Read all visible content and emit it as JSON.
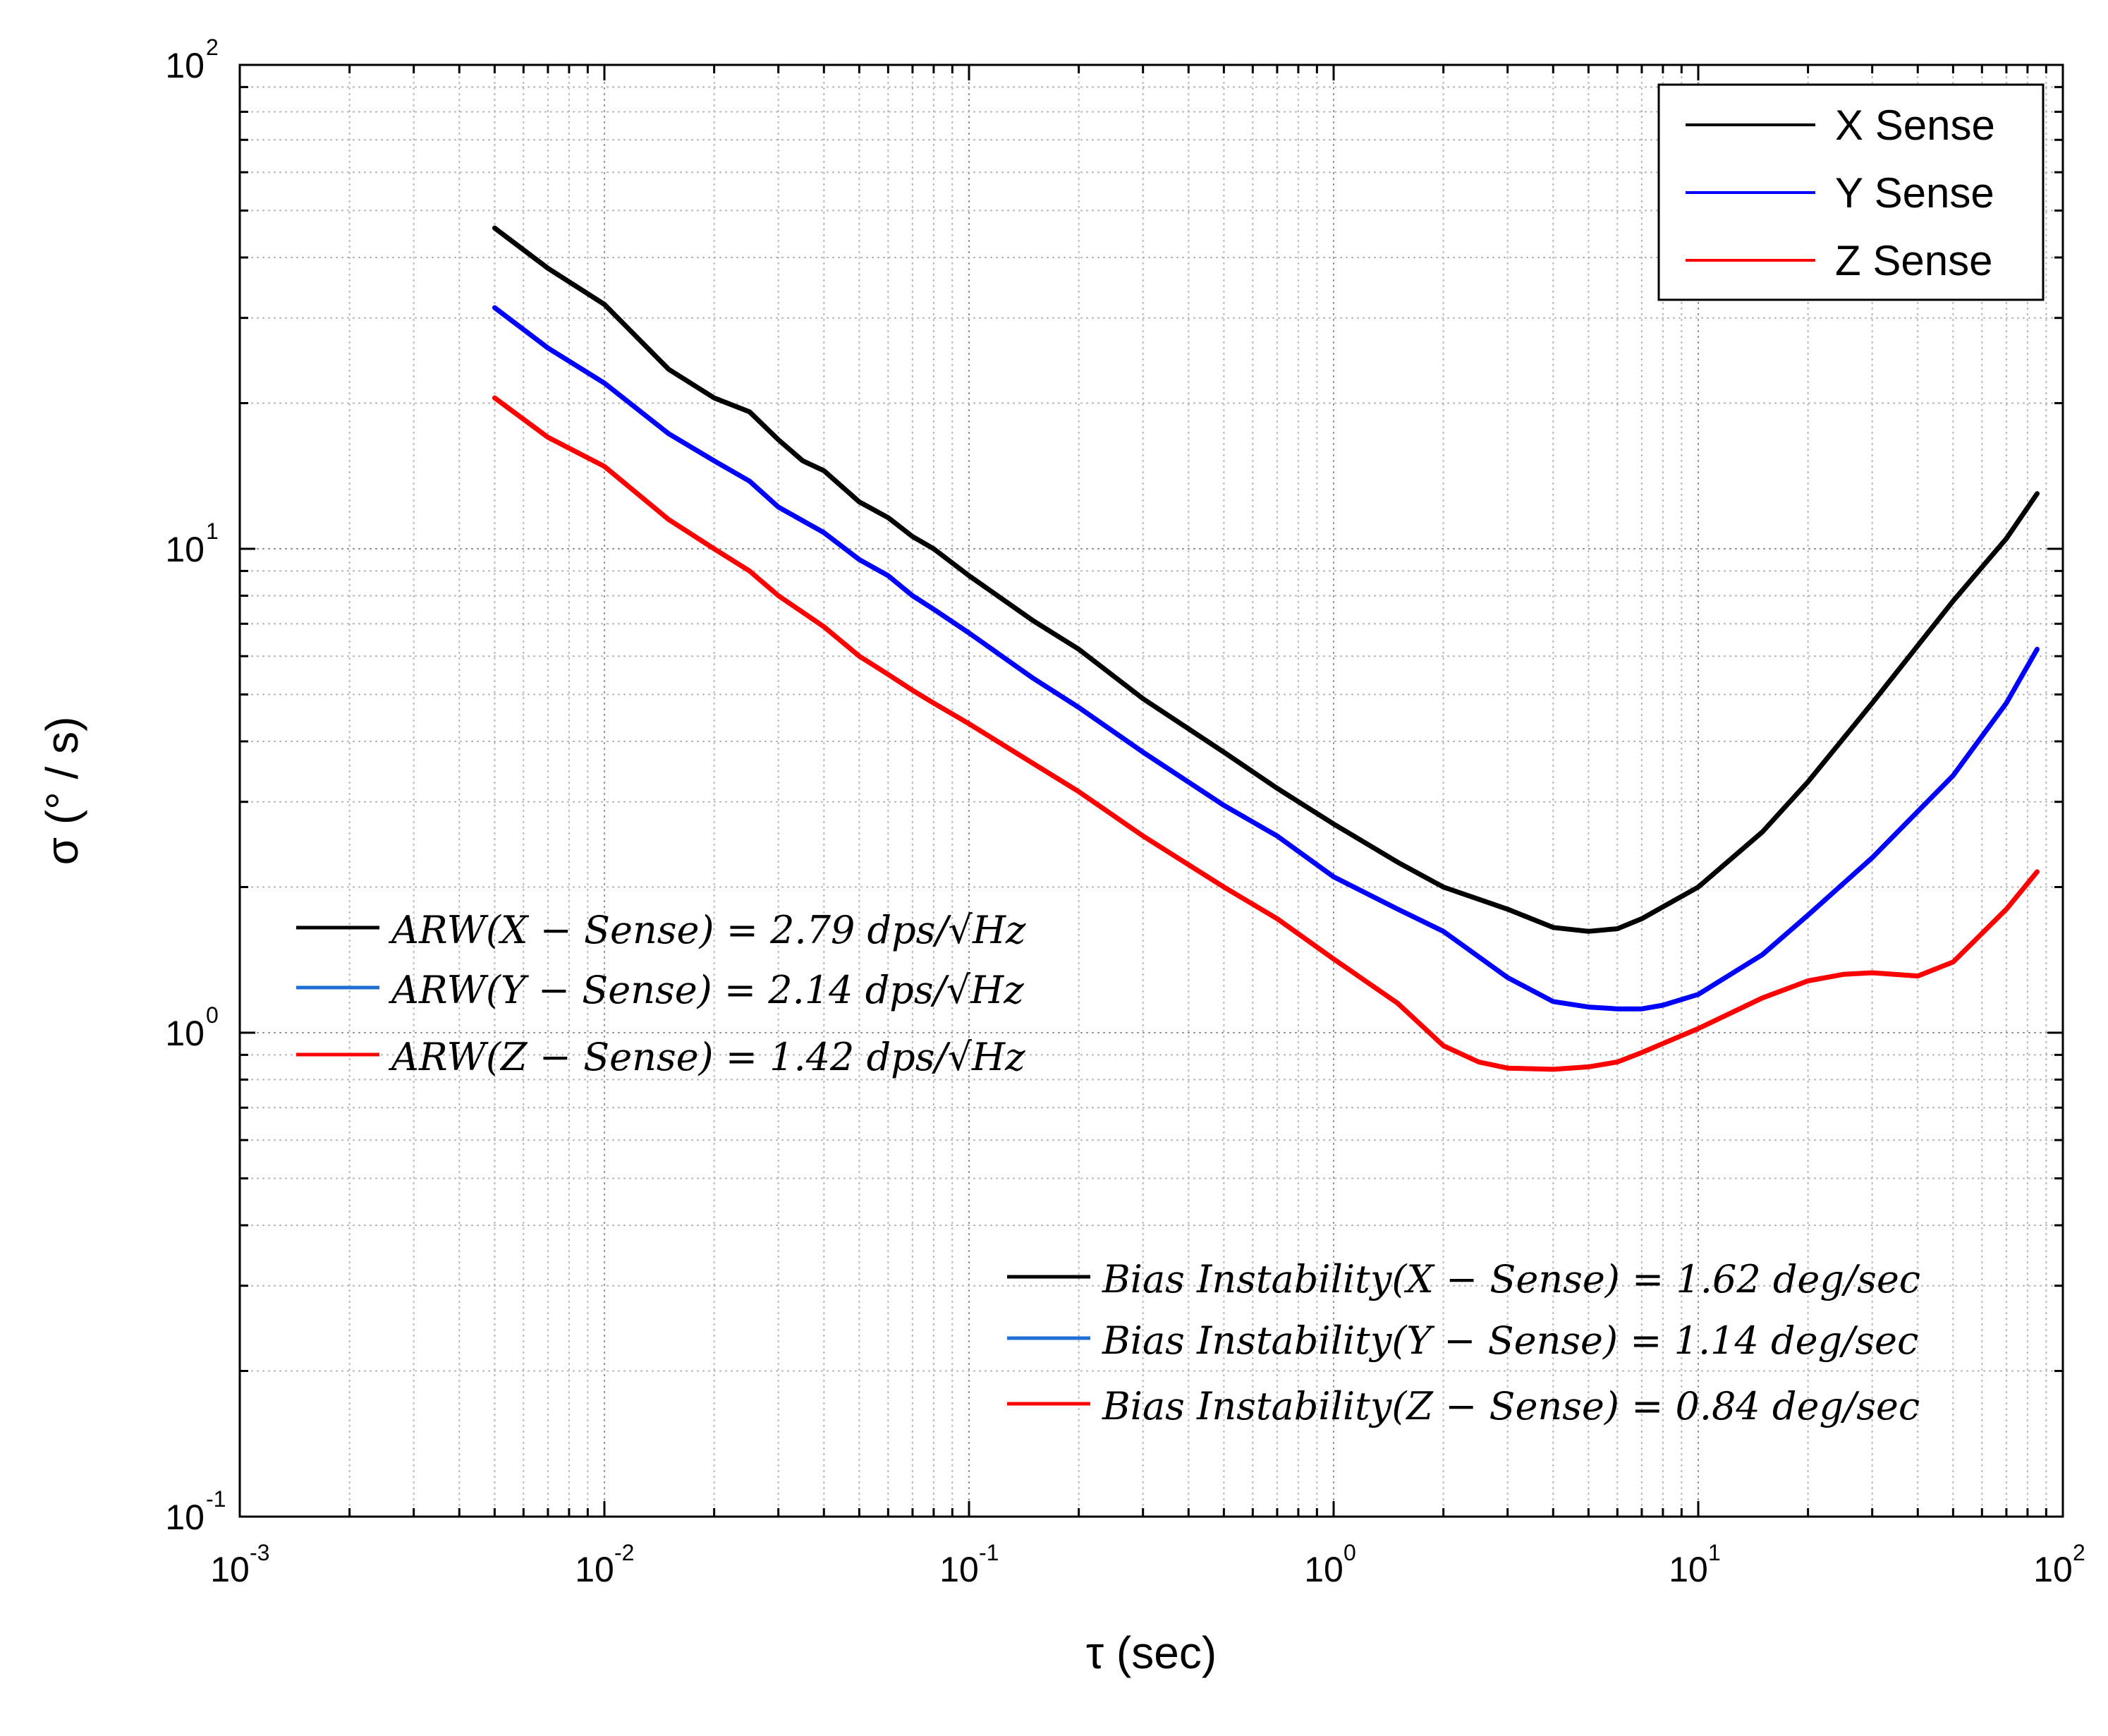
{
  "chart_data": {
    "type": "line",
    "title": "",
    "xlabel": "τ (sec)",
    "ylabel": "σ (° / s)",
    "xscale": "log",
    "yscale": "log",
    "xlim": [
      0.001,
      100
    ],
    "ylim": [
      0.1,
      100
    ],
    "grid": true,
    "x_ticks": [
      {
        "base": "10",
        "exp": "-3",
        "value": 0.001
      },
      {
        "base": "10",
        "exp": "-2",
        "value": 0.01
      },
      {
        "base": "10",
        "exp": "-1",
        "value": 0.1
      },
      {
        "base": "10",
        "exp": "0",
        "value": 1
      },
      {
        "base": "10",
        "exp": "1",
        "value": 10
      },
      {
        "base": "10",
        "exp": "2",
        "value": 100
      }
    ],
    "y_ticks": [
      {
        "base": "10",
        "exp": "-1",
        "value": 0.1
      },
      {
        "base": "10",
        "exp": "0",
        "value": 1
      },
      {
        "base": "10",
        "exp": "1",
        "value": 10
      },
      {
        "base": "10",
        "exp": "2",
        "value": 100
      }
    ],
    "legend_position": "top-right",
    "series": [
      {
        "name": "X Sense",
        "color": "#000000",
        "x": [
          0.005,
          0.007,
          0.01,
          0.015,
          0.02,
          0.025,
          0.03,
          0.035,
          0.04,
          0.05,
          0.06,
          0.07,
          0.08,
          0.1,
          0.15,
          0.2,
          0.3,
          0.5,
          0.7,
          1,
          1.5,
          2,
          3,
          4,
          5,
          6,
          7,
          8,
          10,
          15,
          20,
          30,
          50,
          70,
          85
        ],
        "y": [
          46,
          38,
          32,
          23.5,
          20.5,
          19.2,
          16.8,
          15.2,
          14.5,
          12.5,
          11.6,
          10.6,
          10,
          8.8,
          7.1,
          6.2,
          4.9,
          3.8,
          3.2,
          2.7,
          2.25,
          2.0,
          1.8,
          1.65,
          1.62,
          1.64,
          1.72,
          1.82,
          2.0,
          2.6,
          3.3,
          4.8,
          7.8,
          10.5,
          13
        ]
      },
      {
        "name": "Y Sense",
        "color": "#0000ff",
        "x": [
          0.005,
          0.007,
          0.01,
          0.015,
          0.02,
          0.025,
          0.03,
          0.04,
          0.05,
          0.06,
          0.07,
          0.08,
          0.1,
          0.15,
          0.2,
          0.3,
          0.5,
          0.7,
          1,
          1.5,
          2,
          3,
          4,
          5,
          6,
          7,
          8,
          10,
          15,
          20,
          30,
          50,
          70,
          85
        ],
        "y": [
          31.5,
          26,
          22,
          17.3,
          15.2,
          13.8,
          12.2,
          10.8,
          9.5,
          8.8,
          8.0,
          7.5,
          6.7,
          5.4,
          4.7,
          3.8,
          2.95,
          2.55,
          2.1,
          1.8,
          1.62,
          1.3,
          1.16,
          1.13,
          1.12,
          1.12,
          1.14,
          1.2,
          1.45,
          1.75,
          2.3,
          3.4,
          4.8,
          6.2
        ]
      },
      {
        "name": "Z Sense",
        "color": "#ff0000",
        "x": [
          0.005,
          0.007,
          0.01,
          0.015,
          0.02,
          0.025,
          0.03,
          0.04,
          0.05,
          0.06,
          0.07,
          0.08,
          0.1,
          0.15,
          0.2,
          0.3,
          0.5,
          0.7,
          1,
          1.5,
          2,
          2.5,
          3,
          4,
          5,
          6,
          7,
          8,
          10,
          15,
          20,
          25,
          30,
          40,
          50,
          70,
          85
        ],
        "y": [
          20.5,
          17,
          14.8,
          11.5,
          10,
          9,
          8,
          6.9,
          6.0,
          5.5,
          5.1,
          4.8,
          4.35,
          3.6,
          3.15,
          2.55,
          2.0,
          1.72,
          1.42,
          1.15,
          0.94,
          0.87,
          0.845,
          0.84,
          0.85,
          0.87,
          0.91,
          0.95,
          1.02,
          1.18,
          1.28,
          1.32,
          1.33,
          1.31,
          1.4,
          1.8,
          2.15
        ]
      }
    ],
    "annotations": [
      {
        "color": "#000000",
        "text": "ARW(X − Sense) = 2.79 dps/√Hz"
      },
      {
        "color": "#1f6fd6",
        "text": "ARW(Y − Sense) = 2.14 dps/√Hz"
      },
      {
        "color": "#ff0000",
        "text": "ARW(Z − Sense) = 1.42 dps/√Hz"
      },
      {
        "color": "#000000",
        "text": "Bias Instability(X − Sense) = 1.62 deg/sec"
      },
      {
        "color": "#1f6fd6",
        "text": "Bias Instability(Y − Sense) = 1.14 deg/sec"
      },
      {
        "color": "#ff0000",
        "text": "Bias Instability(Z − Sense) = 0.84 deg/sec"
      }
    ]
  }
}
